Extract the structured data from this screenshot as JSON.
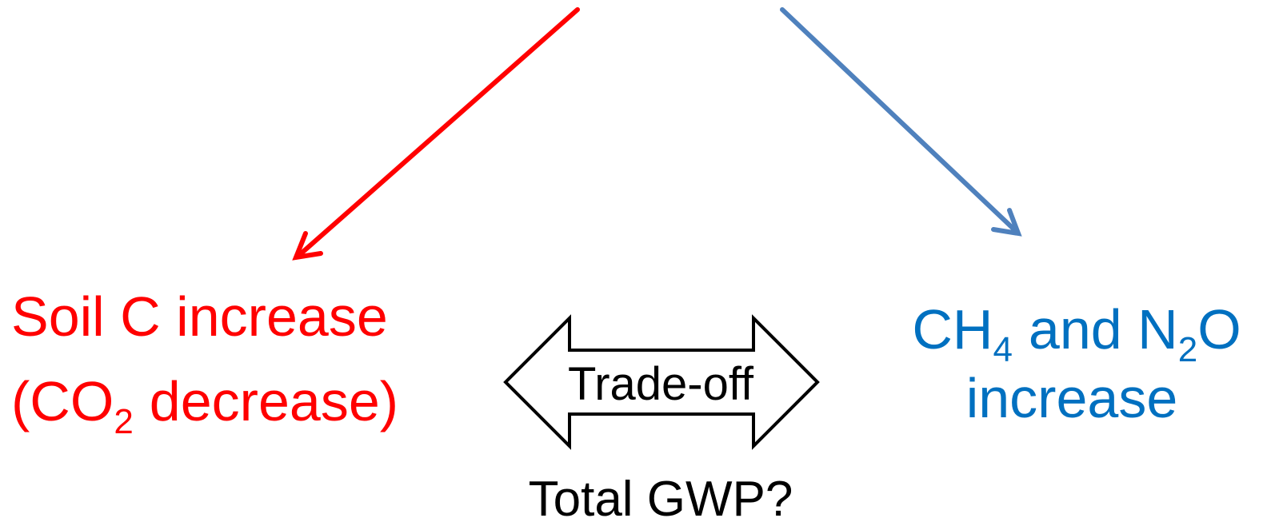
{
  "left": {
    "line1": "Soil C increase",
    "line2": [
      "(CO",
      "2",
      "decrease)"
    ]
  },
  "right": {
    "line1": [
      "CH",
      "4",
      "and N",
      "2",
      "O"
    ],
    "line2": "increase"
  },
  "middle": {
    "arrow_label": "Trade-off",
    "caption": "Total GWP?"
  }
}
